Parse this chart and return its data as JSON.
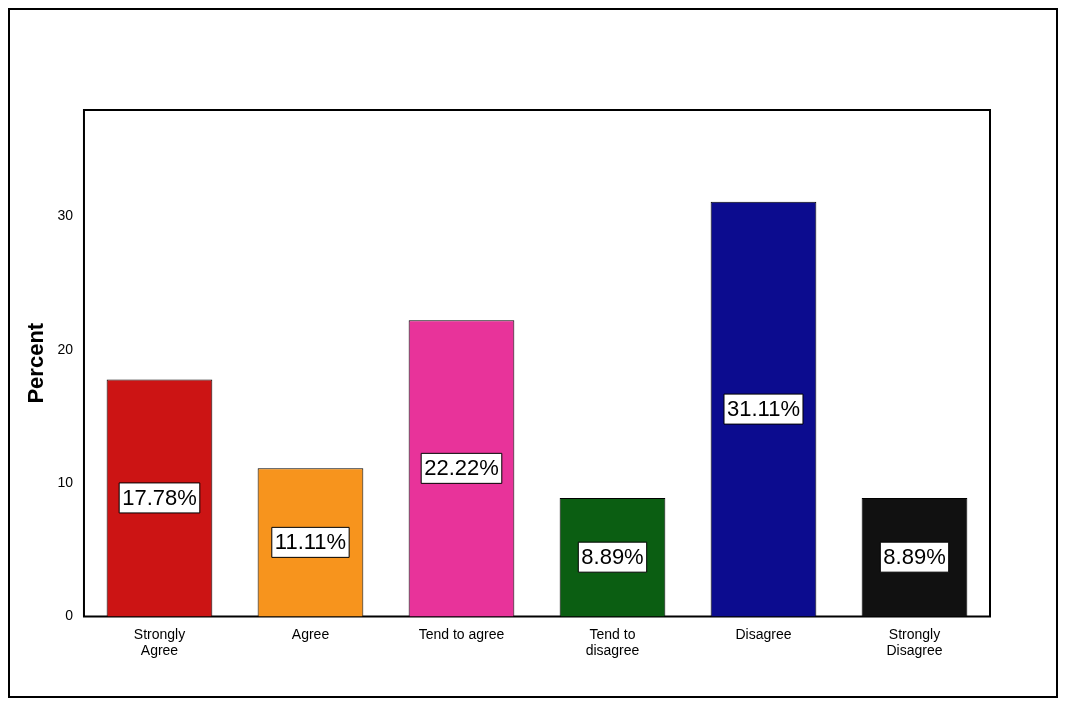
{
  "chart_data": {
    "type": "bar",
    "ylabel": "Percent",
    "categories": [
      "Strongly Agree",
      "Agree",
      "Tend to agree",
      "Tend to disagree",
      "Disagree",
      "Strongly Disagree"
    ],
    "values": [
      17.78,
      11.11,
      22.22,
      8.89,
      31.11,
      8.89
    ],
    "colors": [
      "#cc1414",
      "#f7941d",
      "#e8339a",
      "#0b5e12",
      "#0c0c8f",
      "#111111"
    ],
    "value_labels": [
      "17.78%",
      "11.11%",
      "22.22%",
      "8.89%",
      "31.11%",
      "8.89%"
    ],
    "ylim": [
      0,
      38
    ],
    "yticks": [
      0,
      10,
      20,
      30
    ],
    "grid": false,
    "legend": false
  }
}
